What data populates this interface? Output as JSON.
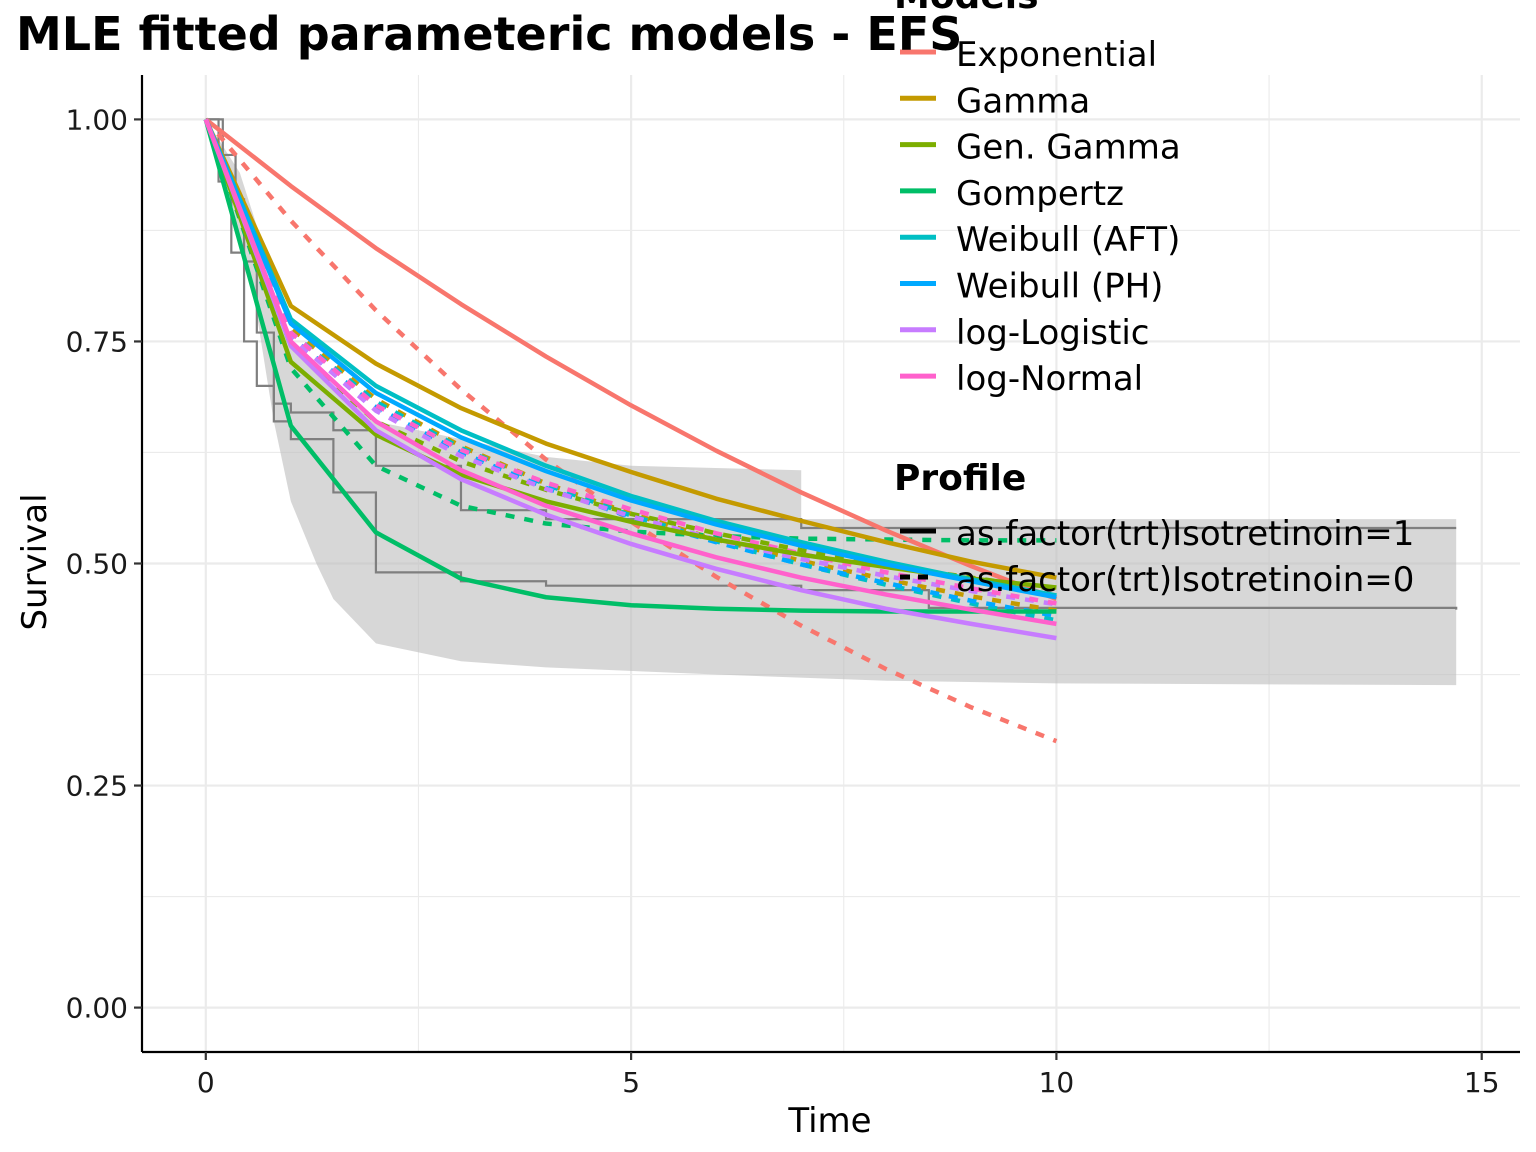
{
  "chart_data": {
    "type": "line",
    "title": "MLE fitted parameteric models - EFS",
    "xlabel": "Time",
    "ylabel": "Survival",
    "xlim": [
      -0.75,
      15.45
    ],
    "ylim": [
      -0.05,
      1.05
    ],
    "x_ticks": [
      "0",
      "5",
      "10",
      "15"
    ],
    "y_ticks": [
      "0.00",
      "0.25",
      "0.50",
      "0.75",
      "1.00"
    ],
    "grid": true,
    "legend_position": "top-right",
    "legend": {
      "models_title": "Models",
      "profile_title": "Profile",
      "profiles": [
        {
          "label": "as.factor(trt)Isotretinoin=1",
          "dash": "solid"
        },
        {
          "label": "as.factor(trt)Isotretinoin=0",
          "dash": "dashed"
        }
      ]
    },
    "x": [
      0,
      1,
      2,
      3,
      4,
      5,
      6,
      7,
      8,
      9,
      10
    ],
    "series": [
      {
        "name": "Exponential",
        "color": "#F8766D",
        "isotretinoin_1": [
          1.0,
          0.925,
          0.855,
          0.792,
          0.733,
          0.678,
          0.627,
          0.58,
          0.537,
          0.497,
          0.46
        ],
        "isotretinoin_0": [
          1.0,
          0.886,
          0.785,
          0.696,
          0.617,
          0.547,
          0.485,
          0.43,
          0.381,
          0.338,
          0.3
        ]
      },
      {
        "name": "Gamma",
        "color": "#C49A00",
        "isotretinoin_1": [
          1.0,
          0.79,
          0.725,
          0.675,
          0.635,
          0.603,
          0.573,
          0.548,
          0.524,
          0.502,
          0.484
        ],
        "isotretinoin_0": [
          1.0,
          0.765,
          0.685,
          0.632,
          0.59,
          0.556,
          0.527,
          0.503,
          0.482,
          0.463,
          0.447
        ]
      },
      {
        "name": "Gen. Gamma",
        "color": "#7CAE00",
        "isotretinoin_1": [
          1.0,
          0.727,
          0.645,
          0.6,
          0.57,
          0.547,
          0.527,
          0.51,
          0.496,
          0.483,
          0.473
        ],
        "isotretinoin_0": [
          1.0,
          0.745,
          0.66,
          0.615,
          0.583,
          0.556,
          0.534,
          0.515,
          0.498,
          0.484,
          0.471
        ]
      },
      {
        "name": "Gompertz",
        "color": "#00BE67",
        "isotretinoin_1": [
          1.0,
          0.655,
          0.535,
          0.483,
          0.462,
          0.453,
          0.449,
          0.447,
          0.446,
          0.446,
          0.446
        ],
        "isotretinoin_0": [
          1.0,
          0.72,
          0.61,
          0.565,
          0.545,
          0.536,
          0.531,
          0.528,
          0.527,
          0.526,
          0.526
        ]
      },
      {
        "name": "Weibull (AFT)",
        "color": "#00BFC4",
        "isotretinoin_1": [
          1.0,
          0.775,
          0.7,
          0.65,
          0.61,
          0.576,
          0.548,
          0.524,
          0.502,
          0.482,
          0.464
        ],
        "isotretinoin_0": [
          1.0,
          0.76,
          0.682,
          0.63,
          0.589,
          0.554,
          0.525,
          0.499,
          0.476,
          0.455,
          0.436
        ]
      },
      {
        "name": "Weibull (PH)",
        "color": "#00A9FF",
        "isotretinoin_1": [
          1.0,
          0.77,
          0.692,
          0.642,
          0.604,
          0.571,
          0.544,
          0.52,
          0.499,
          0.48,
          0.462
        ],
        "isotretinoin_0": [
          1.0,
          0.755,
          0.676,
          0.625,
          0.585,
          0.552,
          0.524,
          0.499,
          0.478,
          0.458,
          0.441
        ]
      },
      {
        "name": "log-Logistic",
        "color": "#C77CFF",
        "isotretinoin_1": [
          1.0,
          0.745,
          0.65,
          0.595,
          0.555,
          0.522,
          0.494,
          0.47,
          0.449,
          0.432,
          0.416
        ],
        "isotretinoin_0": [
          1.0,
          0.755,
          0.672,
          0.621,
          0.584,
          0.553,
          0.527,
          0.505,
          0.486,
          0.469,
          0.454
        ]
      },
      {
        "name": "log-Normal",
        "color": "#FF61CC",
        "isotretinoin_1": [
          1.0,
          0.75,
          0.66,
          0.605,
          0.565,
          0.534,
          0.507,
          0.484,
          0.465,
          0.448,
          0.432
        ],
        "isotretinoin_0": [
          1.0,
          0.76,
          0.678,
          0.628,
          0.591,
          0.561,
          0.534,
          0.511,
          0.49,
          0.472,
          0.455
        ]
      }
    ]
  }
}
